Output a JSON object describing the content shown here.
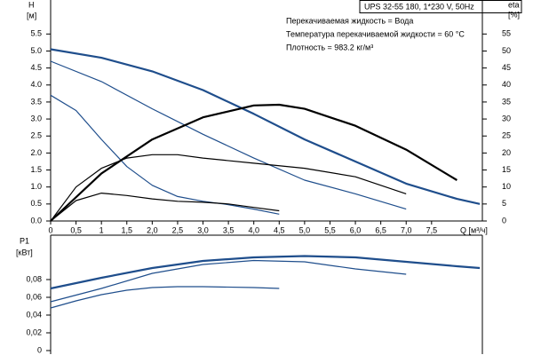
{
  "chart_data": [
    {
      "type": "line",
      "title": "UPS 32-55 180, 1*230 V, 50Hz",
      "annotations": [
        "Перекачиваемая жидкость = Вода",
        "Температура перекачиваемой жидкости = 60 °C",
        "Плотность = 983.2 кг/м³"
      ],
      "ylabel": "H",
      "yunit": "[м]",
      "y2label": "eta",
      "y2unit": "[%]",
      "xlabel": "Q [м³/ч]",
      "xlim": [
        0,
        8.5
      ],
      "xticks": [
        0,
        {
          "value": 0.5,
          "label": "0,5"
        },
        1,
        {
          "value": 1.5,
          "label": "1,5"
        },
        {
          "value": 2,
          "label": "2,0"
        },
        {
          "value": 2.5,
          "label": "2,5"
        },
        {
          "value": 3,
          "label": "3,0"
        },
        {
          "value": 3.5,
          "label": "3,5"
        },
        {
          "value": 4,
          "label": "4,0"
        },
        {
          "value": 4.5,
          "label": "4,5"
        },
        {
          "value": 5,
          "label": "5,0"
        },
        {
          "value": 5.5,
          "label": "5,5"
        },
        {
          "value": 6,
          "label": "6,0"
        },
        {
          "value": 6.5,
          "label": "6,5"
        },
        {
          "value": 7,
          "label": "7,0"
        },
        {
          "value": 7.5,
          "label": "7,5"
        }
      ],
      "ylim": [
        0,
        6.5
      ],
      "yticks": [
        {
          "value": 0,
          "label": "0.0"
        },
        0.5,
        {
          "value": 1,
          "label": "1.0"
        },
        1.5,
        {
          "value": 2,
          "label": "2.0"
        },
        2.5,
        {
          "value": 3,
          "label": "3.0"
        },
        3.5,
        {
          "value": 4,
          "label": "4.0"
        },
        4.5,
        {
          "value": 5,
          "label": "5.0"
        },
        5.5
      ],
      "y2lim": [
        0,
        65
      ],
      "y2ticks": [
        0,
        5,
        10,
        15,
        20,
        25,
        30,
        35,
        40,
        45,
        50,
        55
      ],
      "series": [
        {
          "color": "#1f4e8c",
          "x": [
            0,
            1,
            2,
            3,
            4,
            5,
            6,
            7,
            8,
            8.45
          ],
          "values": [
            5.05,
            4.8,
            4.4,
            3.85,
            3.15,
            2.4,
            1.75,
            1.1,
            0.65,
            0.5
          ]
        },
        {
          "color": "#1f4e8c",
          "x": [
            0,
            1,
            2,
            3,
            4,
            5,
            6,
            7
          ],
          "values": [
            4.7,
            4.1,
            3.3,
            2.55,
            1.85,
            1.2,
            0.8,
            0.35
          ]
        },
        {
          "color": "#1f4e8c",
          "x": [
            0,
            0.5,
            1,
            1.5,
            2,
            2.5,
            3,
            3.5,
            4,
            4.5
          ],
          "values": [
            3.7,
            3.25,
            2.4,
            1.6,
            1.05,
            0.72,
            0.58,
            0.48,
            0.35,
            0.2
          ]
        },
        {
          "color": "#000000",
          "axis": "y2",
          "x": [
            0,
            1,
            2,
            3,
            4,
            4.5,
            5,
            6,
            7,
            8
          ],
          "values": [
            0,
            14,
            24,
            30.5,
            34,
            34.2,
            33,
            28,
            21,
            12
          ]
        },
        {
          "color": "#000000",
          "axis": "y2",
          "x": [
            0,
            0.5,
            1,
            1.5,
            2,
            2.5,
            3,
            4,
            5,
            6,
            7
          ],
          "values": [
            0,
            10,
            15.5,
            18.5,
            19.5,
            19.5,
            18.5,
            17,
            15.5,
            13,
            8
          ]
        },
        {
          "color": "#000000",
          "axis": "y2",
          "x": [
            0,
            0.5,
            1,
            1.5,
            2,
            2.5,
            3,
            3.5,
            4,
            4.5
          ],
          "values": [
            0,
            6,
            8.2,
            7.5,
            6.5,
            5.8,
            5.5,
            5,
            4,
            3
          ]
        }
      ]
    },
    {
      "type": "line",
      "ylabel": "P1",
      "yunit": "[кВт]",
      "xlim": [
        0,
        8.5
      ],
      "ylim": [
        -0.004,
        0.13
      ],
      "yticks": [
        0,
        {
          "value": 0.02,
          "label": "0,02"
        },
        {
          "value": 0.04,
          "label": "0,04"
        },
        {
          "value": 0.06,
          "label": "0,06"
        },
        {
          "value": 0.08,
          "label": "0,08"
        }
      ],
      "series": [
        {
          "color": "#1f4e8c",
          "x": [
            0,
            1,
            2,
            3,
            4,
            5,
            6,
            7,
            8,
            8.45
          ],
          "values": [
            0.07,
            0.082,
            0.093,
            0.101,
            0.105,
            0.1065,
            0.105,
            0.1,
            0.095,
            0.093
          ]
        },
        {
          "color": "#1f4e8c",
          "x": [
            0,
            1,
            2,
            3,
            4,
            5,
            6,
            7
          ],
          "values": [
            0.055,
            0.07,
            0.087,
            0.097,
            0.1015,
            0.1,
            0.092,
            0.086
          ]
        },
        {
          "color": "#1f4e8c",
          "x": [
            0,
            0.5,
            1,
            1.5,
            2,
            2.5,
            3,
            4,
            4.5
          ],
          "values": [
            0.048,
            0.056,
            0.063,
            0.068,
            0.071,
            0.072,
            0.072,
            0.071,
            0.07
          ]
        }
      ]
    }
  ]
}
